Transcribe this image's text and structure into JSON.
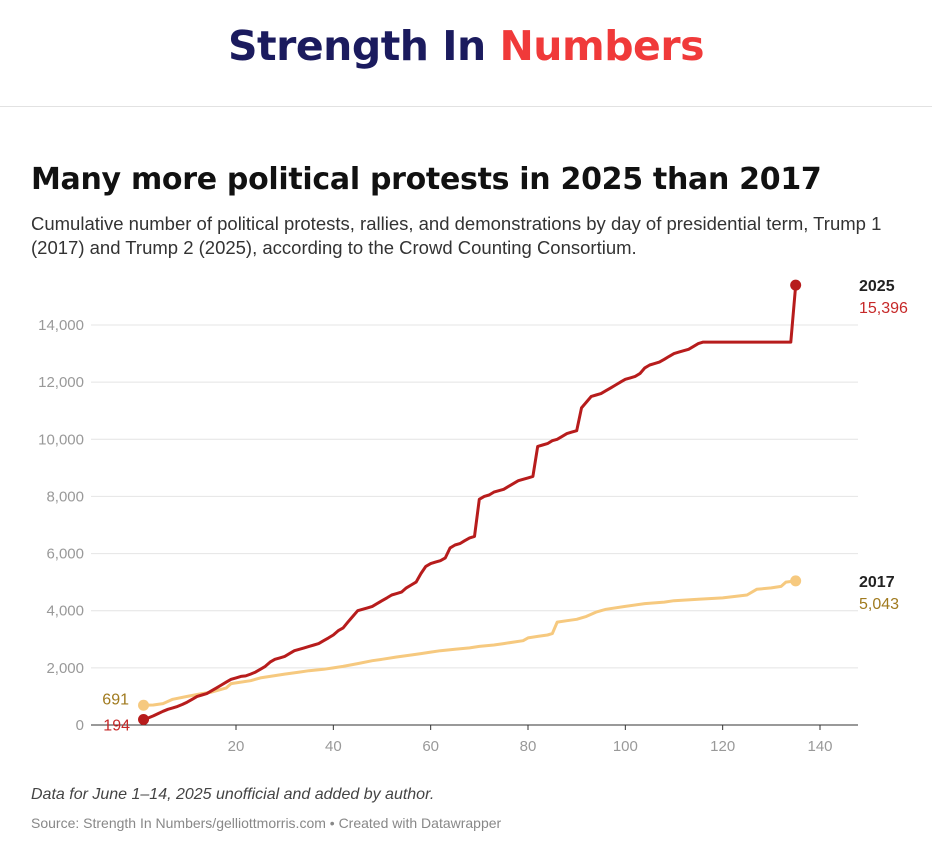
{
  "brand": {
    "part1": "Strength In",
    "part2": "Numbers"
  },
  "note": "Data for June 1–14, 2025 unofficial and added by author.",
  "source": "Source: Strength In Numbers/gelliottmorris.com • Created with Datawrapper",
  "chart_data": {
    "type": "line",
    "title": "Many more political protests in 2025 than 2017",
    "subtitle": "Cumulative number of political protests, rallies, and demonstrations by day of presidential term, Trump 1 (2017) and Trump 2 (2025), according to the Crowd Counting Consortium.",
    "xlim": [
      0,
      146
    ],
    "ylim": [
      0,
      14000
    ],
    "xticks": [
      20,
      40,
      60,
      80,
      100,
      120,
      140
    ],
    "yticks": [
      0,
      2000,
      4000,
      6000,
      8000,
      10000,
      12000,
      14000
    ],
    "grid": true,
    "legend": "end-of-line labels",
    "series": [
      {
        "name": "2025",
        "color": "#b71c1c",
        "start_label": "194",
        "end_label": "15,396",
        "points": [
          [
            1,
            194
          ],
          [
            2,
            250
          ],
          [
            3,
            320
          ],
          [
            4,
            400
          ],
          [
            5,
            480
          ],
          [
            6,
            550
          ],
          [
            7,
            600
          ],
          [
            8,
            650
          ],
          [
            9,
            720
          ],
          [
            10,
            800
          ],
          [
            11,
            900
          ],
          [
            12,
            1000
          ],
          [
            13,
            1050
          ],
          [
            14,
            1100
          ],
          [
            15,
            1200
          ],
          [
            16,
            1300
          ],
          [
            17,
            1400
          ],
          [
            18,
            1500
          ],
          [
            19,
            1600
          ],
          [
            20,
            1650
          ],
          [
            21,
            1700
          ],
          [
            22,
            1720
          ],
          [
            23,
            1780
          ],
          [
            24,
            1850
          ],
          [
            25,
            1950
          ],
          [
            26,
            2050
          ],
          [
            27,
            2200
          ],
          [
            28,
            2300
          ],
          [
            29,
            2350
          ],
          [
            30,
            2400
          ],
          [
            31,
            2500
          ],
          [
            32,
            2600
          ],
          [
            33,
            2650
          ],
          [
            34,
            2700
          ],
          [
            35,
            2750
          ],
          [
            36,
            2800
          ],
          [
            37,
            2850
          ],
          [
            38,
            2950
          ],
          [
            39,
            3050
          ],
          [
            40,
            3150
          ],
          [
            41,
            3300
          ],
          [
            42,
            3400
          ],
          [
            43,
            3600
          ],
          [
            44,
            3800
          ],
          [
            45,
            4000
          ],
          [
            46,
            4050
          ],
          [
            47,
            4100
          ],
          [
            48,
            4150
          ],
          [
            49,
            4250
          ],
          [
            50,
            4350
          ],
          [
            51,
            4450
          ],
          [
            52,
            4550
          ],
          [
            53,
            4600
          ],
          [
            54,
            4650
          ],
          [
            55,
            4800
          ],
          [
            56,
            4900
          ],
          [
            57,
            5000
          ],
          [
            58,
            5300
          ],
          [
            59,
            5550
          ],
          [
            60,
            5650
          ],
          [
            61,
            5700
          ],
          [
            62,
            5750
          ],
          [
            63,
            5850
          ],
          [
            64,
            6200
          ],
          [
            65,
            6300
          ],
          [
            66,
            6350
          ],
          [
            67,
            6450
          ],
          [
            68,
            6550
          ],
          [
            69,
            6600
          ],
          [
            70,
            7900
          ],
          [
            71,
            8000
          ],
          [
            72,
            8050
          ],
          [
            73,
            8150
          ],
          [
            74,
            8200
          ],
          [
            75,
            8250
          ],
          [
            76,
            8350
          ],
          [
            77,
            8450
          ],
          [
            78,
            8550
          ],
          [
            79,
            8600
          ],
          [
            80,
            8650
          ],
          [
            81,
            8700
          ],
          [
            82,
            9750
          ],
          [
            83,
            9800
          ],
          [
            84,
            9850
          ],
          [
            85,
            9950
          ],
          [
            86,
            10000
          ],
          [
            87,
            10100
          ],
          [
            88,
            10200
          ],
          [
            89,
            10250
          ],
          [
            90,
            10300
          ],
          [
            91,
            11100
          ],
          [
            92,
            11300
          ],
          [
            93,
            11500
          ],
          [
            94,
            11550
          ],
          [
            95,
            11600
          ],
          [
            96,
            11700
          ],
          [
            97,
            11800
          ],
          [
            98,
            11900
          ],
          [
            99,
            12000
          ],
          [
            100,
            12100
          ],
          [
            101,
            12150
          ],
          [
            102,
            12200
          ],
          [
            103,
            12300
          ],
          [
            104,
            12500
          ],
          [
            105,
            12600
          ],
          [
            106,
            12650
          ],
          [
            107,
            12700
          ],
          [
            108,
            12800
          ],
          [
            109,
            12900
          ],
          [
            110,
            13000
          ],
          [
            111,
            13050
          ],
          [
            112,
            13100
          ],
          [
            113,
            13150
          ],
          [
            114,
            13250
          ],
          [
            115,
            13350
          ],
          [
            116,
            13400
          ],
          [
            117,
            13400
          ],
          [
            120,
            13400
          ],
          [
            125,
            13400
          ],
          [
            130,
            13400
          ],
          [
            134,
            13400
          ],
          [
            135,
            15396
          ]
        ]
      },
      {
        "name": "2017",
        "color": "#f6c97f",
        "start_label": "691",
        "end_label": "5,043",
        "points": [
          [
            1,
            691
          ],
          [
            3,
            700
          ],
          [
            5,
            750
          ],
          [
            7,
            900
          ],
          [
            10,
            1000
          ],
          [
            13,
            1100
          ],
          [
            15,
            1150
          ],
          [
            17,
            1250
          ],
          [
            18,
            1300
          ],
          [
            19,
            1450
          ],
          [
            21,
            1500
          ],
          [
            23,
            1550
          ],
          [
            25,
            1650
          ],
          [
            27,
            1700
          ],
          [
            30,
            1780
          ],
          [
            33,
            1850
          ],
          [
            35,
            1900
          ],
          [
            38,
            1950
          ],
          [
            40,
            2000
          ],
          [
            42,
            2050
          ],
          [
            45,
            2150
          ],
          [
            48,
            2250
          ],
          [
            50,
            2300
          ],
          [
            53,
            2380
          ],
          [
            56,
            2450
          ],
          [
            58,
            2500
          ],
          [
            60,
            2550
          ],
          [
            62,
            2600
          ],
          [
            65,
            2650
          ],
          [
            68,
            2700
          ],
          [
            70,
            2750
          ],
          [
            73,
            2800
          ],
          [
            75,
            2850
          ],
          [
            77,
            2900
          ],
          [
            79,
            2950
          ],
          [
            80,
            3050
          ],
          [
            82,
            3100
          ],
          [
            84,
            3150
          ],
          [
            85,
            3200
          ],
          [
            86,
            3600
          ],
          [
            88,
            3650
          ],
          [
            90,
            3700
          ],
          [
            92,
            3800
          ],
          [
            94,
            3950
          ],
          [
            96,
            4050
          ],
          [
            100,
            4150
          ],
          [
            104,
            4250
          ],
          [
            108,
            4300
          ],
          [
            110,
            4350
          ],
          [
            115,
            4400
          ],
          [
            120,
            4450
          ],
          [
            125,
            4550
          ],
          [
            127,
            4750
          ],
          [
            130,
            4800
          ],
          [
            132,
            4850
          ],
          [
            133,
            5000
          ],
          [
            135,
            5043
          ]
        ]
      }
    ]
  }
}
